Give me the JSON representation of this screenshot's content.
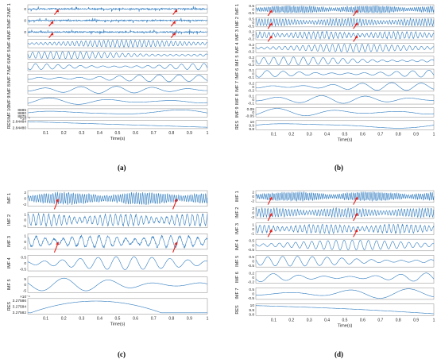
{
  "panels": [
    {
      "id": "a",
      "caption": "(a)",
      "xlabel": "Time(s)",
      "xticks": [
        "0.1",
        "0.2",
        "0.3",
        "0.4",
        "0.5",
        "0.6",
        "0.7",
        "0.8",
        "0.9",
        "1"
      ],
      "exponent": "×10⁻⁴",
      "rows": [
        {
          "label": "IMF 1",
          "yticks": [
            "0"
          ],
          "kind": "spiky",
          "arrows": [
            0.17,
            0.83
          ]
        },
        {
          "label": "IMF 2",
          "yticks": [
            "0"
          ],
          "kind": "spiky",
          "arrows": [
            0.14,
            0.82
          ]
        },
        {
          "label": "IMF 3",
          "yticks": [
            "0"
          ],
          "kind": "spiky",
          "arrows": [
            0.14,
            0.82
          ]
        },
        {
          "label": "IMF 4",
          "yticks": [],
          "kind": "osc",
          "freq": 40
        },
        {
          "label": "IMF 5",
          "yticks": [],
          "kind": "osc",
          "freq": 30
        },
        {
          "label": "IMF 6",
          "yticks": [],
          "kind": "osc",
          "freq": 16
        },
        {
          "label": "IMF 7",
          "yticks": [],
          "kind": "osc",
          "freq": 9
        },
        {
          "label": "IMF 8",
          "yticks": [],
          "kind": "osc",
          "freq": 5
        },
        {
          "label": "IMF 9",
          "yticks": [],
          "kind": "osc",
          "freq": 3
        },
        {
          "label": "IMF 10",
          "yticks": [
            "8885",
            "8880",
            "8875"
          ],
          "kind": "osc",
          "freq": 1.5
        },
        {
          "label": "RES",
          "yticks": [
            "2.84484",
            "2.84480"
          ],
          "kind": "trend"
        }
      ]
    },
    {
      "id": "b",
      "caption": "(b)",
      "xlabel": "Time(s)",
      "xticks": [
        "0.1",
        "0.2",
        "0.3",
        "0.4",
        "0.5",
        "0.6",
        "0.7",
        "0.8",
        "0.9",
        "1"
      ],
      "exponent": "",
      "rows": [
        {
          "label": "IMF 1",
          "yticks": [
            "0.5",
            "0",
            "-0.5"
          ],
          "kind": "bursty",
          "freq": 90,
          "arrows": [
            0.09,
            0.57
          ]
        },
        {
          "label": "IMF 2",
          "yticks": [
            "0.5",
            "0",
            "-0.5"
          ],
          "kind": "bursty",
          "freq": 60,
          "arrows": [
            0.09,
            0.57
          ]
        },
        {
          "label": "IMF 3",
          "yticks": [
            "0.2",
            "0",
            "-0.2"
          ],
          "kind": "bursty",
          "freq": 40,
          "arrows": [
            0.09,
            0.57
          ]
        },
        {
          "label": "IMF 4",
          "yticks": [
            "0.2",
            "0",
            "-0.2"
          ],
          "kind": "osc",
          "freq": 30
        },
        {
          "label": "IMF 5",
          "yticks": [
            "0.2",
            "0",
            "-0.2"
          ],
          "kind": "osc",
          "freq": 18
        },
        {
          "label": "IMF 6",
          "yticks": [
            "0.1",
            "0",
            "-0.1"
          ],
          "kind": "osc",
          "freq": 11
        },
        {
          "label": "IMF 7",
          "yticks": [
            "0.2",
            "0",
            "-0.2"
          ],
          "kind": "osc",
          "freq": 6
        },
        {
          "label": "IMF 8",
          "yticks": [
            "0.1",
            "0",
            "-0.1"
          ],
          "kind": "osc",
          "freq": 4
        },
        {
          "label": "IMF 9",
          "yticks": [
            "0.05",
            "0",
            "-0.05"
          ],
          "kind": "osc",
          "freq": 3
        },
        {
          "label": "RES",
          "yticks": [
            "10",
            "9.9",
            "9.8"
          ],
          "kind": "osc",
          "freq": 1
        }
      ]
    },
    {
      "id": "c",
      "caption": "(c)",
      "xlabel": "Time(s)",
      "xticks": [
        "0.1",
        "0.2",
        "0.3",
        "0.4",
        "0.5",
        "0.6",
        "0.7",
        "0.8",
        "0.9",
        "1"
      ],
      "exponent": "×10⁻⁴",
      "rows": [
        {
          "label": "IMF 1",
          "yticks": [
            "2",
            "0",
            "-2"
          ],
          "kind": "bursty",
          "freq": 80,
          "arrows": [
            0.17,
            0.83
          ]
        },
        {
          "label": "IMF 2",
          "yticks": [
            "1",
            "0",
            "-1"
          ],
          "kind": "bursty",
          "freq": 35,
          "arrows": []
        },
        {
          "label": "IMF 3",
          "yticks": [
            "1",
            "0",
            "-1"
          ],
          "kind": "bursty",
          "freq": 20,
          "arrows": [
            0.17,
            0.83
          ]
        },
        {
          "label": "IMF 4",
          "yticks": [
            "0.5",
            "0",
            "-0.5"
          ],
          "kind": "osc",
          "freq": 10
        },
        {
          "label": "IMF 5",
          "yticks": [
            "5",
            "0",
            "-5"
          ],
          "kind": "osc",
          "freq": 4
        },
        {
          "label": "RES",
          "yticks": [
            "3.27586",
            "3.27584",
            "3.27582"
          ],
          "kind": "hump"
        }
      ]
    },
    {
      "id": "d",
      "caption": "(d)",
      "xlabel": "Time(s)",
      "xticks": [
        "0.1",
        "0.2",
        "0.3",
        "0.4",
        "0.5",
        "0.6",
        "0.7",
        "0.8",
        "0.9",
        "1"
      ],
      "exponent": "",
      "rows": [
        {
          "label": "IMF 1",
          "yticks": [
            "2",
            "0",
            "-2"
          ],
          "kind": "bursty",
          "freq": 90,
          "arrows": [
            0.09,
            0.57
          ]
        },
        {
          "label": "IMF 2",
          "yticks": [
            "2",
            "0",
            "-2"
          ],
          "kind": "bursty",
          "freq": 60,
          "arrows": [
            0.09,
            0.57
          ]
        },
        {
          "label": "IMF 3",
          "yticks": [
            "1",
            "0",
            "-1"
          ],
          "kind": "bursty",
          "freq": 40,
          "arrows": [
            0.09,
            0.57
          ]
        },
        {
          "label": "IMF 4",
          "yticks": [
            "0.5",
            "0",
            "-0.5"
          ],
          "kind": "osc",
          "freq": 22
        },
        {
          "label": "IMF 5",
          "yticks": [
            "0.5",
            "0",
            "-0.5"
          ],
          "kind": "osc",
          "freq": 12
        },
        {
          "label": "IMF 6",
          "yticks": [
            "0.2",
            "0",
            "-0.2"
          ],
          "kind": "osc",
          "freq": 7
        },
        {
          "label": "IMF 7",
          "yticks": [
            "0.5",
            "0",
            "-0.5"
          ],
          "kind": "osc",
          "freq": 3
        },
        {
          "label": "RES",
          "yticks": [
            "10",
            "9.9",
            "9.8"
          ],
          "kind": "decay"
        }
      ]
    }
  ],
  "colors": {
    "signal": "#2f7bbf",
    "arrow": "#e3211c",
    "axis": "#333333"
  }
}
